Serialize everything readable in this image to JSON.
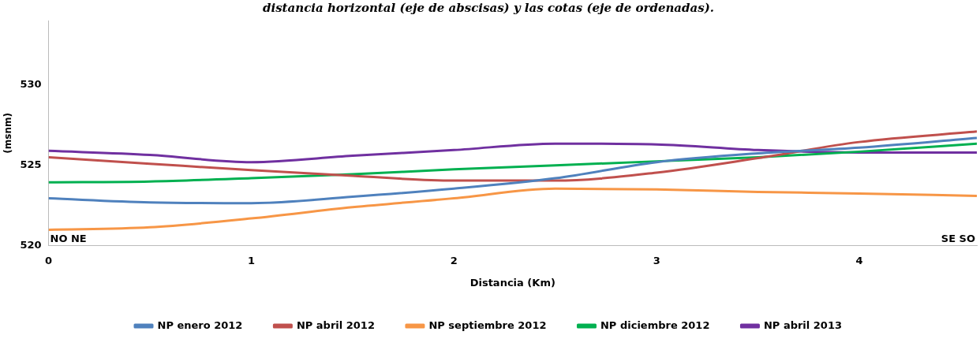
{
  "chart_data": {
    "type": "line",
    "title": "distancia horizontal (eje de abscisas) y las cotas (eje de ordenadas).",
    "xlabel": "Distancia (Km)",
    "ylabel": "(msnm)",
    "x": [
      0,
      0.5,
      1,
      1.5,
      2,
      2.5,
      3,
      3.5,
      4,
      4.58
    ],
    "series": [
      {
        "name": "NP enero 2012",
        "color": "#4f81bd",
        "values": [
          522.95,
          522.7,
          522.65,
          523.05,
          523.55,
          524.2,
          525.2,
          525.75,
          526.1,
          526.7
        ]
      },
      {
        "name": "NP abril 2012",
        "color": "#c0504d",
        "values": [
          525.5,
          525.1,
          524.7,
          524.35,
          524.05,
          524.05,
          524.55,
          525.45,
          526.45,
          527.1
        ]
      },
      {
        "name": "NP septiembre 2012",
        "color": "#f79646",
        "values": [
          521.0,
          521.15,
          521.7,
          522.4,
          522.95,
          523.55,
          523.5,
          523.35,
          523.25,
          523.1
        ]
      },
      {
        "name": "NP diciembre 2012",
        "color": "#00b050",
        "values": [
          523.95,
          524.0,
          524.2,
          524.45,
          524.75,
          525.0,
          525.25,
          525.5,
          525.85,
          526.35
        ]
      },
      {
        "name": "NP abril 2013",
        "color": "#7030a0",
        "values": [
          525.9,
          525.65,
          525.2,
          525.6,
          525.95,
          526.35,
          526.3,
          525.95,
          525.8,
          525.8
        ]
      }
    ],
    "xlim": [
      0,
      4.58
    ],
    "xticks": [
      0,
      1,
      2,
      3,
      4
    ],
    "ylim": [
      520,
      534
    ],
    "yticks": [
      520,
      525,
      530
    ],
    "annotations": [
      "NO NE",
      "SE SO"
    ],
    "grid": false,
    "legend": "bottom",
    "marker": "none",
    "line_style": "solid"
  }
}
